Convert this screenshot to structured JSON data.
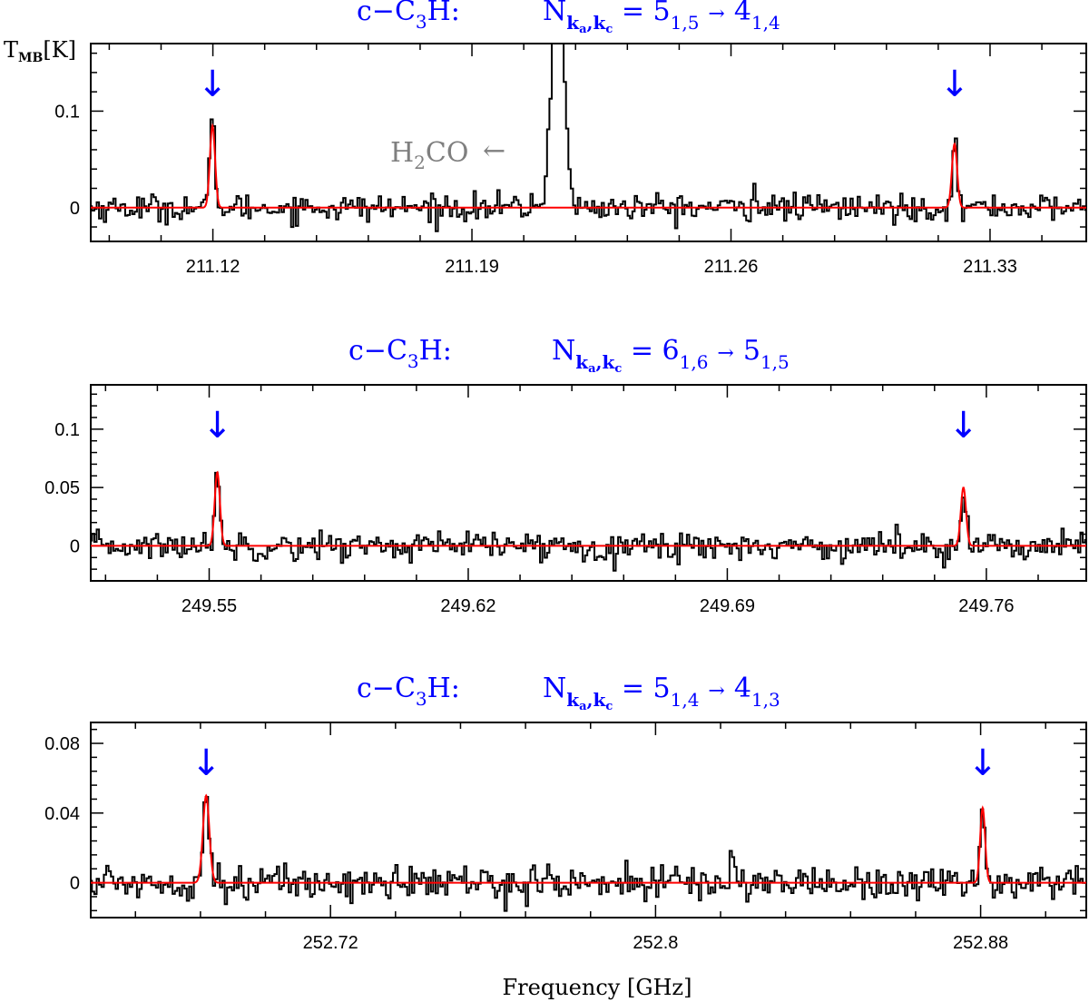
{
  "figure": {
    "ylabel_main": "T",
    "ylabel_sub": "MB",
    "ylabel_unit": "[K]",
    "xlabel": "Frequency [GHz]"
  },
  "chart_data": [
    {
      "type": "line",
      "title": {
        "molecule_pre": "c−C",
        "molecule_sub": "3",
        "molecule_post": "H:",
        "n": "N",
        "n_sub": "k",
        "n_sub_a": "a",
        "n_sub_mid": ",k",
        "n_sub_c": "c",
        "eq": " = ",
        "upper": "5",
        "upper_sub": "1,5",
        "arrow": "→",
        "lower": "4",
        "lower_sub": "1,4"
      },
      "xlabel": "",
      "ylabel": "",
      "xlim": [
        211.087,
        211.356
      ],
      "ylim": [
        -0.035,
        0.17
      ],
      "xticks": [
        211.12,
        211.19,
        211.26,
        211.33
      ],
      "xtick_labels": [
        "211.12",
        "211.19",
        "211.26",
        "211.33"
      ],
      "yticks": [
        0,
        0.1
      ],
      "ytick_labels": [
        "0",
        "0.1"
      ],
      "series": [
        {
          "role": "observed",
          "color": "#000000",
          "features": [
            {
              "x": 211.1199,
              "amplitude": 0.088,
              "sigma": 0.0007
            },
            {
              "x": 211.2132,
              "amplitude": 0.26,
              "sigma": 0.0016
            },
            {
              "x": 211.3204,
              "amplitude": 0.064,
              "sigma": 0.0007
            },
            {
              "x": 211.2664,
              "amplitude": 0.024,
              "sigma": 0.0004
            }
          ],
          "noise_rms": 0.007
        },
        {
          "role": "fit",
          "color": "#ff0000",
          "features": [
            {
              "x": 211.1199,
              "amplitude": 0.085,
              "sigma": 0.0007
            },
            {
              "x": 211.3204,
              "amplitude": 0.066,
              "sigma": 0.0007
            }
          ]
        }
      ],
      "markers": [
        {
          "x": 211.1199,
          "color": "#0000ff",
          "glyph": "↓"
        },
        {
          "x": 211.3204,
          "color": "#0000ff",
          "glyph": "↓"
        }
      ],
      "annotation": {
        "label_pre": "H",
        "label_sub": "2",
        "label_post": "CO",
        "arrow": "←",
        "color": "#7f7f7f",
        "x": 211.19,
        "y": 0.06
      }
    },
    {
      "type": "line",
      "title": {
        "molecule_pre": "c−C",
        "molecule_sub": "3",
        "molecule_post": "H:",
        "n": "N",
        "n_sub": "k",
        "n_sub_a": "a",
        "n_sub_mid": ",k",
        "n_sub_c": "c",
        "eq": " = ",
        "upper": "6",
        "upper_sub": "1,6",
        "arrow": "→",
        "lower": "5",
        "lower_sub": "1,5"
      },
      "xlabel": "",
      "ylabel": "",
      "xlim": [
        249.518,
        249.787
      ],
      "ylim": [
        -0.03,
        0.138
      ],
      "xticks": [
        249.55,
        249.62,
        249.69,
        249.76
      ],
      "xtick_labels": [
        "249.55",
        "249.62",
        "249.69",
        "249.76"
      ],
      "yticks": [
        0,
        0.05,
        0.1
      ],
      "ytick_labels": [
        "0",
        "0.05",
        "0.1"
      ],
      "series": [
        {
          "role": "observed",
          "color": "#000000",
          "features": [
            {
              "x": 249.5522,
              "amplitude": 0.065,
              "sigma": 0.0007
            },
            {
              "x": 249.7538,
              "amplitude": 0.052,
              "sigma": 0.0007
            }
          ],
          "noise_rms": 0.006
        },
        {
          "role": "fit",
          "color": "#ff0000",
          "features": [
            {
              "x": 249.5522,
              "amplitude": 0.063,
              "sigma": 0.0007
            },
            {
              "x": 249.7538,
              "amplitude": 0.05,
              "sigma": 0.0007
            }
          ]
        }
      ],
      "markers": [
        {
          "x": 249.5522,
          "color": "#0000ff",
          "glyph": "↓"
        },
        {
          "x": 249.7538,
          "color": "#0000ff",
          "glyph": "↓"
        }
      ]
    },
    {
      "type": "line",
      "title": {
        "molecule_pre": "c−C",
        "molecule_sub": "3",
        "molecule_post": "H:",
        "n": "N",
        "n_sub": "k",
        "n_sub_a": "a",
        "n_sub_mid": ",k",
        "n_sub_c": "c",
        "eq": " = ",
        "upper": "5",
        "upper_sub": "1,4",
        "arrow": "→",
        "lower": "4",
        "lower_sub": "1,3"
      },
      "xlabel": "Frequency [GHz]",
      "ylabel": "",
      "xlim": [
        252.661,
        252.906
      ],
      "ylim": [
        -0.02,
        0.092
      ],
      "xticks": [
        252.72,
        252.8,
        252.88
      ],
      "xtick_labels": [
        "252.72",
        "252.8",
        "252.88"
      ],
      "yticks": [
        0,
        0.04,
        0.08
      ],
      "ytick_labels": [
        "0",
        "0.04",
        "0.08"
      ],
      "series": [
        {
          "role": "observed",
          "color": "#000000",
          "features": [
            {
              "x": 252.6894,
              "amplitude": 0.05,
              "sigma": 0.0008
            },
            {
              "x": 252.8805,
              "amplitude": 0.04,
              "sigma": 0.0006
            },
            {
              "x": 252.8188,
              "amplitude": 0.02,
              "sigma": 0.0004
            }
          ],
          "noise_rms": 0.005
        },
        {
          "role": "fit",
          "color": "#ff0000",
          "features": [
            {
              "x": 252.6894,
              "amplitude": 0.05,
              "sigma": 0.0008
            },
            {
              "x": 252.8805,
              "amplitude": 0.043,
              "sigma": 0.0006
            }
          ]
        }
      ],
      "markers": [
        {
          "x": 252.6894,
          "color": "#0000ff",
          "glyph": "↓"
        },
        {
          "x": 252.8805,
          "color": "#0000ff",
          "glyph": "↓"
        }
      ]
    }
  ]
}
